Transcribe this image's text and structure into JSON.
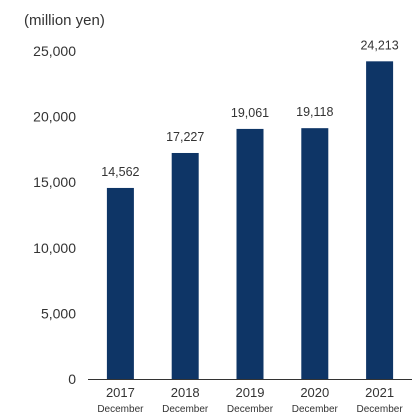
{
  "chart_data": {
    "type": "bar",
    "ylabel": "(million yen)",
    "categories": [
      "2017",
      "2018",
      "2019",
      "2020",
      "2021"
    ],
    "category_sublabel": "December",
    "values": [
      14562,
      17227,
      19061,
      19118,
      24213
    ],
    "value_labels": [
      "14,562",
      "17,227",
      "19,061",
      "19,118",
      "24,213"
    ],
    "ylim": [
      0,
      25000
    ],
    "yticks": [
      0,
      5000,
      10000,
      15000,
      20000,
      25000
    ],
    "ytick_labels": [
      "0",
      "5,000",
      "10,000",
      "15,000",
      "20,000",
      "25,000"
    ],
    "bar_color": "#0e3566",
    "grid": false
  }
}
